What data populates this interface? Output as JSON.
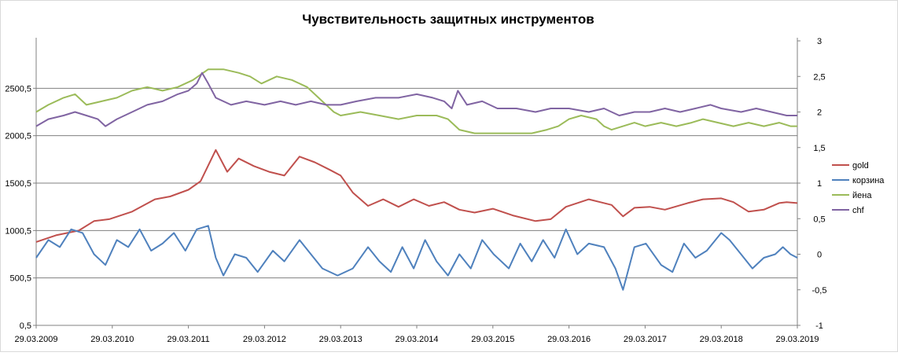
{
  "chart_data": {
    "type": "line",
    "title": "Чувствительность защитных инструментов",
    "x": [
      "29.03.2009",
      "29.03.2010",
      "29.03.2011",
      "29.03.2012",
      "29.03.2013",
      "29.03.2014",
      "29.03.2015",
      "29.03.2016",
      "29.03.2017",
      "29.03.2018",
      "29.03.2019"
    ],
    "x_range": [
      2009.24,
      2019.24
    ],
    "y_left": {
      "ticks": [
        "0,5",
        "500,5",
        "1000,5",
        "1500,5",
        "2000,5",
        "2500,5"
      ],
      "lim": [
        0.5,
        3000.5
      ]
    },
    "y_right": {
      "ticks": [
        "-1",
        "-0,5",
        "0",
        "0,5",
        "1",
        "1,5",
        "2",
        "2,5",
        "3"
      ],
      "lim": [
        -1,
        3
      ]
    },
    "grid": "horizontal",
    "legend_position": "right",
    "series": [
      {
        "name": "gold",
        "axis": "left",
        "color": "#C0504D",
        "points": [
          [
            2009.24,
            880
          ],
          [
            2009.5,
            950
          ],
          [
            2009.8,
            1000
          ],
          [
            2010.0,
            1100
          ],
          [
            2010.2,
            1120
          ],
          [
            2010.5,
            1200
          ],
          [
            2010.8,
            1330
          ],
          [
            2011.0,
            1360
          ],
          [
            2011.24,
            1430
          ],
          [
            2011.4,
            1520
          ],
          [
            2011.6,
            1850
          ],
          [
            2011.75,
            1620
          ],
          [
            2011.9,
            1760
          ],
          [
            2012.1,
            1680
          ],
          [
            2012.3,
            1620
          ],
          [
            2012.5,
            1580
          ],
          [
            2012.7,
            1780
          ],
          [
            2012.9,
            1720
          ],
          [
            2013.1,
            1640
          ],
          [
            2013.24,
            1580
          ],
          [
            2013.4,
            1400
          ],
          [
            2013.6,
            1260
          ],
          [
            2013.8,
            1330
          ],
          [
            2014.0,
            1250
          ],
          [
            2014.2,
            1330
          ],
          [
            2014.4,
            1260
          ],
          [
            2014.6,
            1300
          ],
          [
            2014.8,
            1220
          ],
          [
            2015.0,
            1190
          ],
          [
            2015.24,
            1230
          ],
          [
            2015.5,
            1160
          ],
          [
            2015.8,
            1100
          ],
          [
            2016.0,
            1120
          ],
          [
            2016.2,
            1250
          ],
          [
            2016.5,
            1330
          ],
          [
            2016.8,
            1270
          ],
          [
            2016.95,
            1150
          ],
          [
            2017.1,
            1240
          ],
          [
            2017.3,
            1250
          ],
          [
            2017.5,
            1220
          ],
          [
            2017.8,
            1290
          ],
          [
            2018.0,
            1330
          ],
          [
            2018.24,
            1340
          ],
          [
            2018.4,
            1300
          ],
          [
            2018.6,
            1200
          ],
          [
            2018.8,
            1220
          ],
          [
            2019.0,
            1290
          ],
          [
            2019.1,
            1300
          ],
          [
            2019.24,
            1290
          ]
        ]
      },
      {
        "name": "корзина",
        "axis": "right",
        "color": "#4F81BD",
        "points": [
          [
            2009.24,
            -0.05
          ],
          [
            2009.4,
            0.2
          ],
          [
            2009.55,
            0.1
          ],
          [
            2009.7,
            0.35
          ],
          [
            2009.85,
            0.3
          ],
          [
            2010.0,
            0.0
          ],
          [
            2010.15,
            -0.15
          ],
          [
            2010.3,
            0.2
          ],
          [
            2010.45,
            0.1
          ],
          [
            2010.6,
            0.35
          ],
          [
            2010.75,
            0.05
          ],
          [
            2010.9,
            0.15
          ],
          [
            2011.05,
            0.3
          ],
          [
            2011.2,
            0.05
          ],
          [
            2011.35,
            0.35
          ],
          [
            2011.5,
            0.4
          ],
          [
            2011.6,
            -0.05
          ],
          [
            2011.7,
            -0.3
          ],
          [
            2011.85,
            0.0
          ],
          [
            2012.0,
            -0.05
          ],
          [
            2012.15,
            -0.25
          ],
          [
            2012.35,
            0.05
          ],
          [
            2012.5,
            -0.1
          ],
          [
            2012.7,
            0.2
          ],
          [
            2012.85,
            0.0
          ],
          [
            2013.0,
            -0.2
          ],
          [
            2013.2,
            -0.3
          ],
          [
            2013.4,
            -0.2
          ],
          [
            2013.6,
            0.1
          ],
          [
            2013.75,
            -0.1
          ],
          [
            2013.9,
            -0.25
          ],
          [
            2014.05,
            0.1
          ],
          [
            2014.2,
            -0.2
          ],
          [
            2014.35,
            0.2
          ],
          [
            2014.5,
            -0.1
          ],
          [
            2014.65,
            -0.3
          ],
          [
            2014.8,
            0.0
          ],
          [
            2014.95,
            -0.2
          ],
          [
            2015.1,
            0.2
          ],
          [
            2015.25,
            0.0
          ],
          [
            2015.45,
            -0.2
          ],
          [
            2015.6,
            0.15
          ],
          [
            2015.75,
            -0.1
          ],
          [
            2015.9,
            0.2
          ],
          [
            2016.05,
            -0.05
          ],
          [
            2016.2,
            0.35
          ],
          [
            2016.35,
            0.0
          ],
          [
            2016.5,
            0.15
          ],
          [
            2016.7,
            0.1
          ],
          [
            2016.85,
            -0.2
          ],
          [
            2016.95,
            -0.5
          ],
          [
            2017.1,
            0.1
          ],
          [
            2017.25,
            0.15
          ],
          [
            2017.45,
            -0.15
          ],
          [
            2017.6,
            -0.25
          ],
          [
            2017.75,
            0.15
          ],
          [
            2017.9,
            -0.05
          ],
          [
            2018.05,
            0.05
          ],
          [
            2018.24,
            0.3
          ],
          [
            2018.35,
            0.2
          ],
          [
            2018.5,
            0.0
          ],
          [
            2018.65,
            -0.2
          ],
          [
            2018.8,
            -0.05
          ],
          [
            2018.95,
            0.0
          ],
          [
            2019.05,
            0.1
          ],
          [
            2019.15,
            0.0
          ],
          [
            2019.24,
            -0.05
          ]
        ]
      },
      {
        "name": "йена",
        "axis": "right",
        "color": "#9BBB59",
        "points": [
          [
            2009.24,
            2.0
          ],
          [
            2009.4,
            2.1
          ],
          [
            2009.6,
            2.2
          ],
          [
            2009.75,
            2.25
          ],
          [
            2009.9,
            2.1
          ],
          [
            2010.1,
            2.15
          ],
          [
            2010.3,
            2.2
          ],
          [
            2010.5,
            2.3
          ],
          [
            2010.7,
            2.35
          ],
          [
            2010.9,
            2.3
          ],
          [
            2011.1,
            2.35
          ],
          [
            2011.3,
            2.45
          ],
          [
            2011.5,
            2.6
          ],
          [
            2011.7,
            2.6
          ],
          [
            2011.9,
            2.55
          ],
          [
            2012.05,
            2.5
          ],
          [
            2012.2,
            2.4
          ],
          [
            2012.4,
            2.5
          ],
          [
            2012.6,
            2.45
          ],
          [
            2012.8,
            2.35
          ],
          [
            2012.95,
            2.2
          ],
          [
            2013.15,
            2.0
          ],
          [
            2013.24,
            1.95
          ],
          [
            2013.5,
            2.0
          ],
          [
            2013.75,
            1.95
          ],
          [
            2014.0,
            1.9
          ],
          [
            2014.24,
            1.95
          ],
          [
            2014.5,
            1.95
          ],
          [
            2014.65,
            1.9
          ],
          [
            2014.8,
            1.75
          ],
          [
            2015.0,
            1.7
          ],
          [
            2015.24,
            1.7
          ],
          [
            2015.5,
            1.7
          ],
          [
            2015.75,
            1.7
          ],
          [
            2015.95,
            1.75
          ],
          [
            2016.1,
            1.8
          ],
          [
            2016.24,
            1.9
          ],
          [
            2016.4,
            1.95
          ],
          [
            2016.6,
            1.9
          ],
          [
            2016.7,
            1.8
          ],
          [
            2016.8,
            1.75
          ],
          [
            2016.95,
            1.8
          ],
          [
            2017.1,
            1.85
          ],
          [
            2017.24,
            1.8
          ],
          [
            2017.45,
            1.85
          ],
          [
            2017.65,
            1.8
          ],
          [
            2017.85,
            1.85
          ],
          [
            2018.0,
            1.9
          ],
          [
            2018.2,
            1.85
          ],
          [
            2018.4,
            1.8
          ],
          [
            2018.6,
            1.85
          ],
          [
            2018.8,
            1.8
          ],
          [
            2019.0,
            1.85
          ],
          [
            2019.15,
            1.8
          ],
          [
            2019.24,
            1.8
          ]
        ]
      },
      {
        "name": "chf",
        "axis": "right",
        "color": "#8064A2",
        "points": [
          [
            2009.24,
            1.8
          ],
          [
            2009.4,
            1.9
          ],
          [
            2009.6,
            1.95
          ],
          [
            2009.75,
            2.0
          ],
          [
            2009.9,
            1.95
          ],
          [
            2010.05,
            1.9
          ],
          [
            2010.15,
            1.8
          ],
          [
            2010.3,
            1.9
          ],
          [
            2010.5,
            2.0
          ],
          [
            2010.7,
            2.1
          ],
          [
            2010.9,
            2.15
          ],
          [
            2011.1,
            2.25
          ],
          [
            2011.24,
            2.3
          ],
          [
            2011.35,
            2.4
          ],
          [
            2011.42,
            2.55
          ],
          [
            2011.5,
            2.4
          ],
          [
            2011.6,
            2.2
          ],
          [
            2011.8,
            2.1
          ],
          [
            2012.0,
            2.15
          ],
          [
            2012.24,
            2.1
          ],
          [
            2012.45,
            2.15
          ],
          [
            2012.65,
            2.1
          ],
          [
            2012.85,
            2.15
          ],
          [
            2013.05,
            2.1
          ],
          [
            2013.24,
            2.1
          ],
          [
            2013.45,
            2.15
          ],
          [
            2013.7,
            2.2
          ],
          [
            2014.0,
            2.2
          ],
          [
            2014.24,
            2.25
          ],
          [
            2014.45,
            2.2
          ],
          [
            2014.6,
            2.15
          ],
          [
            2014.7,
            2.05
          ],
          [
            2014.78,
            2.3
          ],
          [
            2014.9,
            2.1
          ],
          [
            2015.1,
            2.15
          ],
          [
            2015.3,
            2.05
          ],
          [
            2015.55,
            2.05
          ],
          [
            2015.8,
            2.0
          ],
          [
            2016.0,
            2.05
          ],
          [
            2016.24,
            2.05
          ],
          [
            2016.5,
            2.0
          ],
          [
            2016.7,
            2.05
          ],
          [
            2016.9,
            1.95
          ],
          [
            2017.1,
            2.0
          ],
          [
            2017.3,
            2.0
          ],
          [
            2017.5,
            2.05
          ],
          [
            2017.7,
            2.0
          ],
          [
            2017.9,
            2.05
          ],
          [
            2018.1,
            2.1
          ],
          [
            2018.24,
            2.05
          ],
          [
            2018.5,
            2.0
          ],
          [
            2018.7,
            2.05
          ],
          [
            2018.9,
            2.0
          ],
          [
            2019.1,
            1.95
          ],
          [
            2019.24,
            1.95
          ]
        ]
      }
    ]
  }
}
